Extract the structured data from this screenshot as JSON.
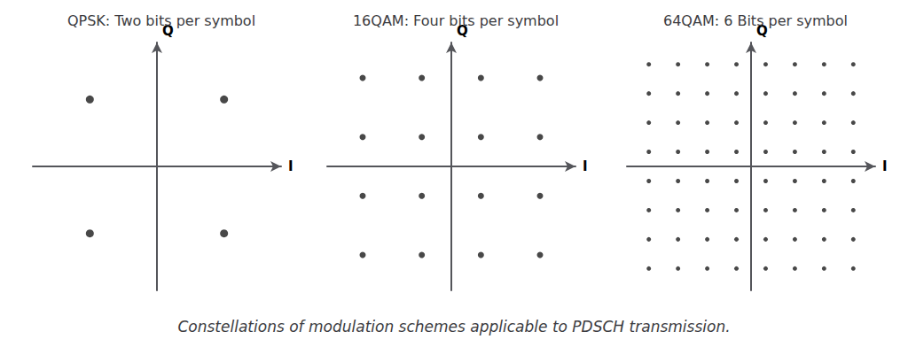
{
  "caption": "Constellations of modulation schemes applicable to PDSCH transmission.",
  "chart_data": [
    {
      "type": "scatter",
      "title": "QPSK: Two bits per symbol",
      "xlabel": "I",
      "ylabel": "Q",
      "x": [
        -1,
        1,
        -1,
        1
      ],
      "values": [
        1,
        1,
        -1,
        -1
      ],
      "xlim": [
        -1.85,
        1.85
      ],
      "ylim": [
        -1.85,
        1.85
      ],
      "tick_labels": false,
      "grid": false,
      "color": "#1a1a1a"
    },
    {
      "type": "scatter",
      "title": "16QAM: Four bits per symbol",
      "xlabel": "I",
      "ylabel": "Q",
      "x": [
        -3,
        -1,
        1,
        3,
        -3,
        -1,
        1,
        3,
        -3,
        -1,
        1,
        3,
        -3,
        -1,
        1,
        3
      ],
      "values": [
        3,
        3,
        3,
        3,
        1,
        1,
        1,
        1,
        -1,
        -1,
        -1,
        -1,
        -3,
        -3,
        -3,
        -3
      ],
      "xlim": [
        -4.2,
        4.2
      ],
      "ylim": [
        -4.2,
        4.2
      ],
      "tick_labels": false,
      "grid": false,
      "color": "#1a1a1a"
    },
    {
      "type": "scatter",
      "title": "64QAM: 6 Bits per symbol",
      "xlabel": "I",
      "ylabel": "Q",
      "x": [
        -7,
        -5,
        -3,
        -1,
        1,
        3,
        5,
        7,
        -7,
        -5,
        -3,
        -1,
        1,
        3,
        5,
        7,
        -7,
        -5,
        -3,
        -1,
        1,
        3,
        5,
        7,
        -7,
        -5,
        -3,
        -1,
        1,
        3,
        5,
        7,
        -7,
        -5,
        -3,
        -1,
        1,
        3,
        5,
        7,
        -7,
        -5,
        -3,
        -1,
        1,
        3,
        5,
        7,
        -7,
        -5,
        -3,
        -1,
        1,
        3,
        5,
        7,
        -7,
        -5,
        -3,
        -1,
        1,
        3,
        5,
        7
      ],
      "values": [
        7,
        7,
        7,
        7,
        7,
        7,
        7,
        7,
        5,
        5,
        5,
        5,
        5,
        5,
        5,
        5,
        3,
        3,
        3,
        3,
        3,
        3,
        3,
        3,
        1,
        1,
        1,
        1,
        1,
        1,
        1,
        1,
        -1,
        -1,
        -1,
        -1,
        -1,
        -1,
        -1,
        -1,
        -3,
        -3,
        -3,
        -3,
        -3,
        -3,
        -3,
        -3,
        -5,
        -5,
        -5,
        -5,
        -5,
        -5,
        -5,
        -5,
        -7,
        -7,
        -7,
        -7,
        -7,
        -7,
        -7,
        -7
      ],
      "xlim": [
        -8.5,
        8.5
      ],
      "ylim": [
        -8.5,
        8.5
      ],
      "tick_labels": false,
      "grid": false,
      "color": "#1a1a1a"
    }
  ]
}
